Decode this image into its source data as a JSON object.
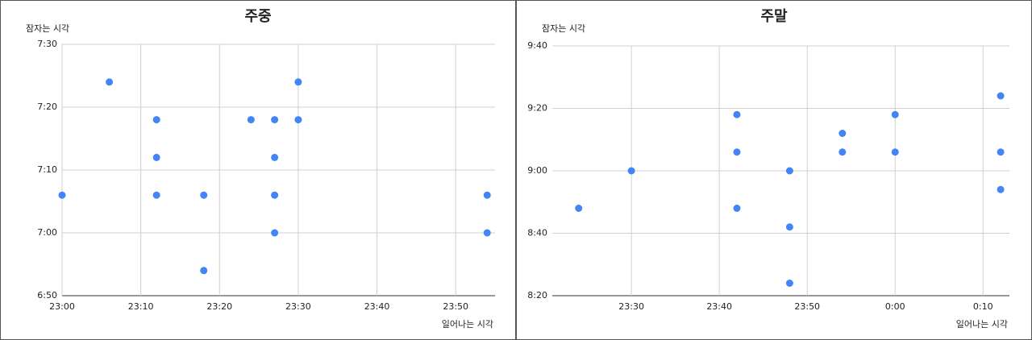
{
  "chart_data": [
    {
      "type": "scatter",
      "title": "주중",
      "y_label": "잠자는 시각",
      "x_label": "일어나는 시각",
      "color": "#4285f4",
      "grid": true,
      "xlim": [
        1380,
        1435
      ],
      "ylim": [
        410,
        450
      ],
      "xticks": [
        {
          "value": 1380,
          "label": "23:00"
        },
        {
          "value": 1390,
          "label": "23:10"
        },
        {
          "value": 1400,
          "label": "23:20"
        },
        {
          "value": 1410,
          "label": "23:30"
        },
        {
          "value": 1420,
          "label": "23:40"
        },
        {
          "value": 1430,
          "label": "23:50"
        }
      ],
      "yticks": [
        {
          "value": 410,
          "label": "6:50"
        },
        {
          "value": 420,
          "label": "7:00"
        },
        {
          "value": 430,
          "label": "7:10"
        },
        {
          "value": 440,
          "label": "7:20"
        },
        {
          "value": 450,
          "label": "7:30"
        }
      ],
      "x": [
        1380,
        1386,
        1392,
        1392,
        1392,
        1398,
        1398,
        1404,
        1407,
        1407,
        1407,
        1407,
        1410,
        1410,
        1434,
        1434
      ],
      "values": [
        426,
        444,
        438,
        432,
        426,
        426,
        414,
        438,
        438,
        432,
        426,
        420,
        444,
        438,
        426,
        420
      ]
    },
    {
      "type": "scatter",
      "title": "주말",
      "y_label": "잠자는 시각",
      "x_label": "일어나는 시각",
      "color": "#4285f4",
      "grid": true,
      "xlim": [
        1401,
        1453
      ],
      "ylim": [
        500,
        580
      ],
      "xticks": [
        {
          "value": 1410,
          "label": "23:30"
        },
        {
          "value": 1420,
          "label": "23:40"
        },
        {
          "value": 1430,
          "label": "23:50"
        },
        {
          "value": 1440,
          "label": "0:00"
        },
        {
          "value": 1450,
          "label": "0:10"
        }
      ],
      "yticks": [
        {
          "value": 500,
          "label": "8:20"
        },
        {
          "value": 520,
          "label": "8:40"
        },
        {
          "value": 540,
          "label": "9:00"
        },
        {
          "value": 560,
          "label": "9:20"
        },
        {
          "value": 580,
          "label": "9:40"
        }
      ],
      "x": [
        1404,
        1410,
        1422,
        1422,
        1422,
        1428,
        1428,
        1428,
        1434,
        1434,
        1440,
        1440,
        1452,
        1452,
        1452
      ],
      "values": [
        528,
        540,
        558,
        546,
        528,
        540,
        522,
        504,
        552,
        546,
        558,
        546,
        564,
        546,
        534
      ]
    }
  ]
}
